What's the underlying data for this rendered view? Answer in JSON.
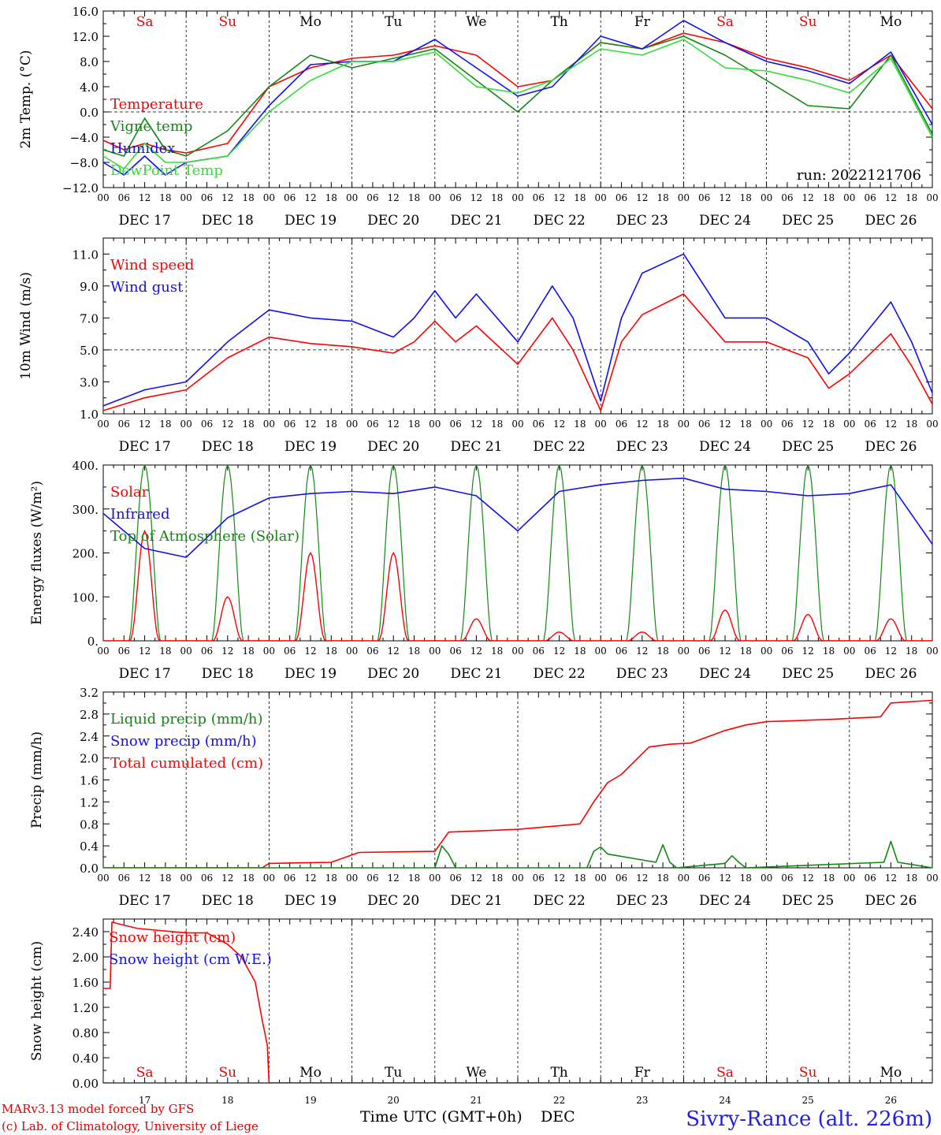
{
  "colors": {
    "red": "#ff0000",
    "green": "#118811",
    "blue": "#1010ee",
    "lightgreen": "#33dd33",
    "weekend": "#ee0000",
    "footer": "#dd0000",
    "station": "#2020e0"
  },
  "days": {
    "dates": [
      "DEC 17",
      "DEC 18",
      "DEC 19",
      "DEC 20",
      "DEC 21",
      "DEC 22",
      "DEC 23",
      "DEC 24",
      "DEC 25",
      "DEC 26"
    ],
    "dow": [
      "Sa",
      "Su",
      "Mo",
      "Tu",
      "We",
      "Th",
      "Fr",
      "Sa",
      "Su",
      "Mo"
    ],
    "weekend": [
      true,
      true,
      false,
      false,
      false,
      false,
      false,
      true,
      true,
      false
    ],
    "daynums": [
      "17",
      "18",
      "19",
      "20",
      "21",
      "22",
      "23",
      "24",
      "25",
      "26"
    ],
    "hour_labels": [
      "00",
      "06",
      "12",
      "18"
    ],
    "end_label": "00"
  },
  "footer": {
    "model": "MARv3.13 model forced by GFS",
    "lab": "(c) Lab. of Climatology, University of Liege",
    "xaxis": "Time UTC (GMT+0h)",
    "month": "DEC",
    "station": "Sivry-Rance (alt. 226m)"
  },
  "chart_data": [
    {
      "type": "line",
      "ylabel": "2m Temp. (°C)",
      "ylim": [
        -12,
        16
      ],
      "yticks": [
        "16.0",
        "12.0",
        "8.0",
        "4.0",
        "0.0",
        "−4.0",
        "−8.0",
        "−12.0"
      ],
      "legend": [
        "Temperature",
        "Vigne temp",
        "Humidex",
        "DewPoint Temp"
      ],
      "annotation": "run: 2022121706",
      "x_unit": "hours from 17 Dec 00 UTC",
      "series": [
        {
          "name": "Temperature",
          "color": "red",
          "x": [
            0,
            6,
            12,
            18,
            24,
            36,
            48,
            60,
            72,
            84,
            96,
            108,
            120,
            130,
            144,
            156,
            168,
            180,
            192,
            204,
            216,
            228,
            240
          ],
          "values": [
            -4.5,
            -6,
            -5,
            -6,
            -6.5,
            -5,
            4,
            7,
            8.5,
            9,
            10.5,
            9,
            4,
            5,
            11,
            10,
            12.5,
            11,
            8.5,
            7,
            5,
            9,
            0.5
          ]
        },
        {
          "name": "Vigne temp",
          "color": "green",
          "x": [
            0,
            6,
            12,
            18,
            24,
            36,
            48,
            60,
            72,
            84,
            96,
            108,
            120,
            130,
            144,
            156,
            168,
            180,
            192,
            204,
            216,
            228,
            240
          ],
          "values": [
            -6,
            -7,
            -1,
            -6,
            -7,
            -3,
            4,
            9,
            7,
            8.5,
            10,
            5,
            0,
            5,
            11,
            10,
            12,
            9,
            5,
            1,
            0.5,
            9,
            -3.5
          ]
        },
        {
          "name": "Humidex",
          "color": "blue",
          "x": [
            0,
            6,
            12,
            18,
            24,
            36,
            48,
            60,
            72,
            84,
            96,
            108,
            120,
            130,
            144,
            156,
            168,
            180,
            192,
            204,
            216,
            228,
            240
          ],
          "values": [
            -8,
            -10,
            -7,
            -10,
            -8,
            -7,
            1,
            7.5,
            8,
            8,
            11.5,
            7,
            2.5,
            4,
            12,
            10,
            14.5,
            11,
            8,
            6.5,
            4.5,
            9.5,
            -2
          ]
        },
        {
          "name": "DewPoint Temp",
          "color": "lightgreen",
          "x": [
            0,
            6,
            12,
            18,
            24,
            36,
            48,
            60,
            72,
            84,
            96,
            108,
            120,
            130,
            144,
            156,
            168,
            180,
            192,
            204,
            216,
            228,
            240
          ],
          "values": [
            -7,
            -9,
            -5,
            -8,
            -8,
            -7,
            0,
            5,
            8,
            8,
            9.5,
            4,
            3,
            5,
            10,
            9,
            11.5,
            7,
            6.5,
            5,
            3,
            8.5,
            -4
          ]
        }
      ]
    },
    {
      "type": "line",
      "ylabel": "10m Wind (m/s)",
      "ylim": [
        1,
        12
      ],
      "yticks": [
        "11.0",
        "9.0",
        "7.0",
        "5.0",
        "3.0",
        "1.0"
      ],
      "legend": [
        "Wind speed",
        "Wind gust"
      ],
      "x_unit": "hours from 17 Dec 00 UTC",
      "series": [
        {
          "name": "Wind speed",
          "color": "red",
          "x": [
            0,
            12,
            24,
            36,
            48,
            60,
            72,
            84,
            90,
            96,
            102,
            108,
            120,
            130,
            136,
            144,
            150,
            156,
            168,
            180,
            192,
            204,
            210,
            216,
            228,
            234,
            240
          ],
          "values": [
            1.2,
            2,
            2.5,
            4.5,
            5.8,
            5.4,
            5.2,
            4.8,
            5.5,
            6.8,
            5.5,
            6.5,
            4.1,
            7,
            5,
            1.2,
            5.5,
            7.2,
            8.5,
            5.5,
            5.5,
            4.5,
            2.6,
            3.5,
            6,
            4,
            1.6
          ]
        },
        {
          "name": "Wind gust",
          "color": "blue",
          "x": [
            0,
            12,
            24,
            36,
            48,
            60,
            72,
            84,
            90,
            96,
            102,
            108,
            120,
            130,
            136,
            144,
            150,
            156,
            168,
            180,
            192,
            204,
            210,
            216,
            228,
            234,
            240
          ],
          "values": [
            1.5,
            2.5,
            3,
            5.5,
            7.5,
            7,
            6.8,
            5.8,
            7,
            8.7,
            7,
            8.5,
            5.5,
            9,
            7,
            1.8,
            7,
            9.8,
            11,
            7,
            7,
            5.5,
            3.5,
            4.8,
            8,
            5.5,
            2.3
          ]
        }
      ]
    },
    {
      "type": "line",
      "ylabel": "Energy fluxes (W/m²)",
      "ylim": [
        0,
        400
      ],
      "yticks": [
        "400.",
        "300.",
        "200.",
        "100.",
        "0."
      ],
      "legend": [
        "Solar",
        "Infrared",
        "Top of Atmosphere (Solar)"
      ],
      "x_unit": "hours from 17 Dec 00 UTC",
      "solar_peaks": [
        250,
        100,
        200,
        200,
        50,
        20,
        20,
        70,
        60,
        50
      ],
      "toa_peaks": [
        400,
        400,
        400,
        400,
        400,
        400,
        400,
        400,
        400,
        400
      ],
      "series": [
        {
          "name": "Infrared",
          "color": "blue",
          "x": [
            0,
            12,
            24,
            36,
            48,
            60,
            72,
            84,
            96,
            108,
            120,
            132,
            144,
            156,
            168,
            180,
            192,
            204,
            216,
            228,
            240
          ],
          "values": [
            290,
            210,
            190,
            280,
            325,
            335,
            340,
            335,
            350,
            330,
            250,
            340,
            355,
            365,
            370,
            345,
            340,
            330,
            335,
            355,
            220
          ]
        }
      ]
    },
    {
      "type": "line",
      "ylabel": "Precip (mm/h)",
      "ylim": [
        0,
        3.2
      ],
      "yticks": [
        "3.2",
        "2.8",
        "2.4",
        "2.0",
        "1.6",
        "1.2",
        "0.8",
        "0.4",
        "0.0"
      ],
      "legend": [
        "Liquid precip (mm/h)",
        "Snow precip (mm/h)",
        "Total cumulated (cm)"
      ],
      "x_unit": "hours from 17 Dec 00 UTC",
      "series": [
        {
          "name": "Total cumulated (cm)",
          "color": "red",
          "x": [
            0,
            46,
            48,
            66,
            74,
            96,
            100,
            120,
            138,
            142,
            146,
            150,
            158,
            164,
            170,
            180,
            186,
            192,
            210,
            225,
            228,
            240
          ],
          "values": [
            0,
            0,
            0.08,
            0.1,
            0.28,
            0.3,
            0.65,
            0.7,
            0.8,
            1.2,
            1.55,
            1.7,
            2.2,
            2.25,
            2.27,
            2.5,
            2.6,
            2.66,
            2.7,
            2.75,
            3.0,
            3.05
          ]
        },
        {
          "name": "Liquid precip (mm/h)",
          "color": "green",
          "x": [
            0,
            96,
            98,
            100,
            102,
            140,
            142,
            144,
            146,
            160,
            162,
            164,
            166,
            180,
            182,
            184,
            186,
            226,
            228,
            230,
            240
          ],
          "values": [
            0,
            0,
            0.4,
            0.25,
            0,
            0,
            0.3,
            0.38,
            0.25,
            0.1,
            0.42,
            0.1,
            0,
            0.08,
            0.22,
            0.1,
            0,
            0.1,
            0.48,
            0.1,
            0
          ]
        }
      ]
    },
    {
      "type": "line",
      "ylabel": "Snow height (cm)",
      "ylim": [
        0,
        2.6
      ],
      "yticks": [
        "2.40",
        "2.00",
        "1.60",
        "1.20",
        "0.80",
        "0.40",
        "0.00"
      ],
      "legend": [
        "Snow height (cm)",
        "Snow height (cm W.E.)"
      ],
      "x_unit": "hours from 17 Dec 00 UTC",
      "series": [
        {
          "name": "Snow height (cm)",
          "color": "red",
          "x": [
            0,
            2,
            2.5,
            10,
            24,
            30,
            36,
            40,
            44,
            46,
            47.5,
            48,
            240
          ],
          "values": [
            1.5,
            1.5,
            2.55,
            2.45,
            2.38,
            2.38,
            2.2,
            2.0,
            1.6,
            1.0,
            0.6,
            0,
            0
          ]
        },
        {
          "name": "Snow height (cm W.E.)",
          "color": "blue",
          "x": [
            0,
            240
          ],
          "values": [
            0,
            0
          ]
        }
      ]
    }
  ]
}
